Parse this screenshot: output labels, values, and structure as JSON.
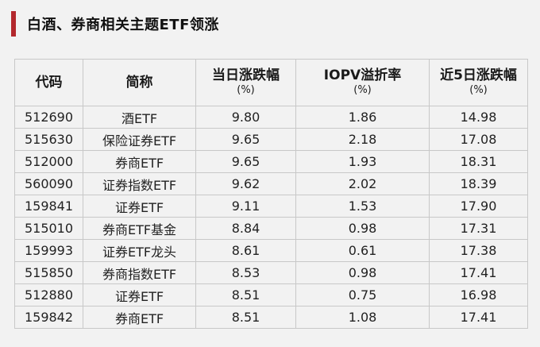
{
  "title": "白酒、券商相关主题ETF领涨",
  "accent_color": "#b3282d",
  "table": {
    "headers": [
      {
        "label": "代码",
        "unit": ""
      },
      {
        "label": "简称",
        "unit": ""
      },
      {
        "label": "当日涨跌幅",
        "unit": "(%)"
      },
      {
        "label": "IOPV溢折率",
        "unit": "(%)"
      },
      {
        "label": "近5日涨跌幅",
        "unit": "(%)"
      }
    ],
    "rows": [
      [
        "512690",
        "酒ETF",
        "9.80",
        "1.86",
        "14.98"
      ],
      [
        "515630",
        "保险证券ETF",
        "9.65",
        "2.18",
        "17.08"
      ],
      [
        "512000",
        "券商ETF",
        "9.65",
        "1.93",
        "18.31"
      ],
      [
        "560090",
        "证券指数ETF",
        "9.62",
        "2.02",
        "18.39"
      ],
      [
        "159841",
        "证券ETF",
        "9.11",
        "1.53",
        "17.90"
      ],
      [
        "515010",
        "券商ETF基金",
        "8.84",
        "0.98",
        "17.31"
      ],
      [
        "159993",
        "证券ETF龙头",
        "8.61",
        "0.61",
        "17.38"
      ],
      [
        "515850",
        "券商指数ETF",
        "8.53",
        "0.98",
        "17.41"
      ],
      [
        "512880",
        "证券ETF",
        "8.51",
        "0.75",
        "16.98"
      ],
      [
        "159842",
        "券商ETF",
        "8.51",
        "1.08",
        "17.41"
      ]
    ]
  }
}
